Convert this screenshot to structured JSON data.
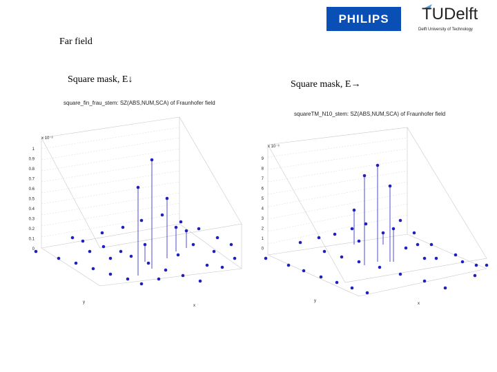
{
  "header": {
    "philips_logo_text": "PHILIPS",
    "tudelft_logo_word": "TUDelft",
    "tudelft_sub": "Delft University of Technology"
  },
  "slide": {
    "heading": "Far field",
    "left_caption": "Square mask, E↓",
    "right_caption": "Square mask, E→"
  },
  "plots": {
    "left_title": "square_fin_frau_stem:   SZ(ABS,NUM,SCA) of Fraunhofer field",
    "left_scale": "x 10⁻³",
    "left_ticks": [
      "1",
      "0.9",
      "0.8",
      "0.7",
      "0.6",
      "0.5",
      "0.4",
      "0.3",
      "0.2",
      "0.1",
      "0"
    ],
    "left_x_ticks": [
      "4",
      "2",
      "0",
      "-2",
      "-4"
    ],
    "left_y_ticks": [
      "-2",
      "0"
    ],
    "right_title": "squareTM_N10_stem:   SZ(ABS,NUM,SCA) of Fraunhofer field",
    "right_scale": "x 10⁻³",
    "right_ticks": [
      "9",
      "8",
      "7",
      "6",
      "5",
      "4",
      "3",
      "2",
      "1",
      "0"
    ],
    "right_x_ticks": [
      "2",
      "0",
      "-2",
      "-4"
    ],
    "right_y_ticks": [
      "-2",
      "0",
      "1",
      "2"
    ],
    "axis_x": "y",
    "axis_y": "x",
    "colors": {
      "stem": "#2020c0",
      "grid": "#c8c8c8"
    }
  }
}
